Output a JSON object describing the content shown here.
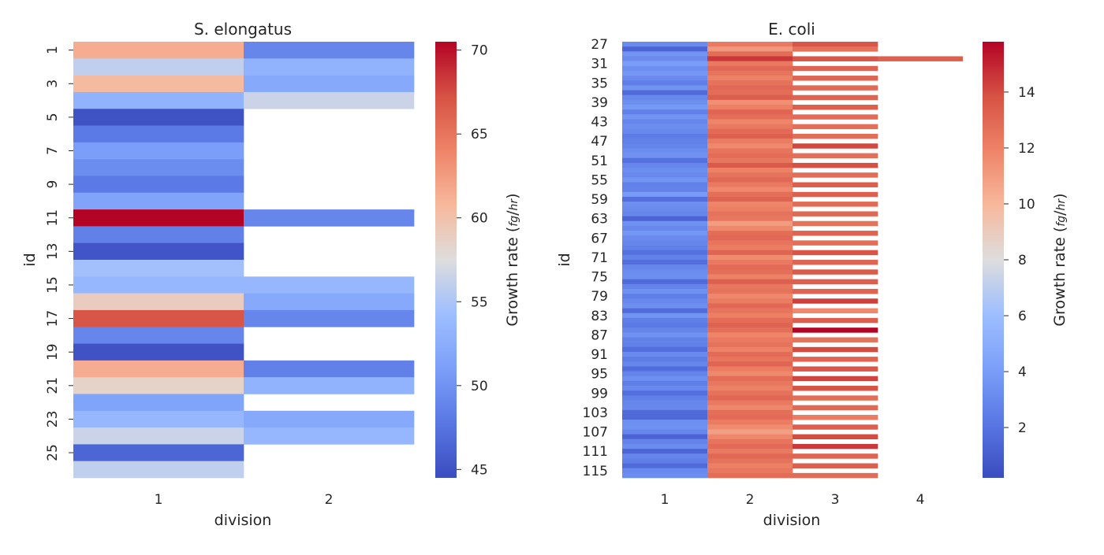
{
  "chart_data": [
    {
      "type": "heatmap",
      "title": "S. elongatus",
      "xlabel": "division",
      "ylabel": "id",
      "x_categories": [
        "1",
        "2"
      ],
      "y_ids": [
        1,
        2,
        3,
        4,
        5,
        6,
        7,
        8,
        9,
        10,
        11,
        12,
        13,
        14,
        15,
        16,
        17,
        18,
        19,
        20,
        21,
        22,
        23,
        24,
        25,
        26
      ],
      "y_tick_labels": [
        "1",
        "3",
        "5",
        "7",
        "9",
        "11",
        "13",
        "15",
        "17",
        "19",
        "21",
        "23",
        "25"
      ],
      "values": [
        [
          61.5,
          49.0
        ],
        [
          56.0,
          53.0
        ],
        [
          60.5,
          52.0
        ],
        [
          53.0,
          56.5
        ],
        [
          45.0,
          null
        ],
        [
          48.0,
          null
        ],
        [
          51.0,
          null
        ],
        [
          49.5,
          null
        ],
        [
          48.0,
          null
        ],
        [
          51.5,
          null
        ],
        [
          70.5,
          49.0
        ],
        [
          48.5,
          null
        ],
        [
          45.2,
          null
        ],
        [
          54.5,
          null
        ],
        [
          53.5,
          53.5
        ],
        [
          59.0,
          52.0
        ],
        [
          67.0,
          49.0
        ],
        [
          49.0,
          null
        ],
        [
          45.0,
          null
        ],
        [
          61.5,
          48.5
        ],
        [
          58.5,
          53.0
        ],
        [
          51.5,
          null
        ],
        [
          53.5,
          52.0
        ],
        [
          56.5,
          53.5
        ],
        [
          46.5,
          null
        ],
        [
          56.0,
          null
        ]
      ],
      "colorbar": {
        "label": "Growth rate (fg/hr)",
        "vmin": 44.5,
        "vmax": 70.5,
        "ticks": [
          45,
          50,
          55,
          60,
          65,
          70
        ],
        "cmap": "coolwarm"
      }
    },
    {
      "type": "heatmap",
      "title": "E. coli",
      "xlabel": "division",
      "ylabel": "id",
      "x_categories": [
        "1",
        "2",
        "3",
        "4"
      ],
      "y_start": 27,
      "y_end": 116,
      "y_tick_labels": [
        "27",
        "31",
        "35",
        "39",
        "43",
        "47",
        "51",
        "55",
        "59",
        "63",
        "67",
        "71",
        "75",
        "79",
        "83",
        "87",
        "91",
        "95",
        "99",
        "103",
        "107",
        "111",
        "115"
      ],
      "values_div1": [
        3.1,
        1.3,
        3.5,
        3.1,
        4.0,
        3.3,
        3.7,
        3.1,
        2.5,
        3.5,
        1.6,
        3.0,
        3.3,
        3.8,
        2.6,
        3.6,
        2.9,
        3.2,
        3.0,
        2.4,
        2.6,
        2.8,
        3.2,
        3.4,
        1.9,
        2.9,
        3.2,
        3.0,
        3.6,
        2.6,
        2.7,
        3.9,
        1.8,
        3.3,
        3.1,
        2.9,
        1.3,
        3.4,
        3.0,
        3.7,
        3.1,
        2.9,
        2.6,
        1.9,
        2.7,
        1.8,
        2.9,
        3.2,
        3.3,
        1.6,
        2.8,
        3.4,
        2.5,
        3.0,
        3.3,
        1.7,
        3.6,
        2.5,
        2.3,
        2.9,
        3.4,
        2.7,
        2.6,
        1.8,
        3.1,
        2.4,
        2.9,
        1.7,
        2.8,
        3.3,
        2.5,
        3.0,
        1.8,
        2.6,
        2.9,
        3.0,
        1.6,
        1.5,
        3.3,
        3.4,
        2.9,
        1.3,
        2.8,
        3.2,
        1.4,
        2.9,
        2.5,
        1.6,
        3.0,
        3.2
      ],
      "values_div2": [
        12.3,
        11.2,
        12.8,
        14.5,
        12.3,
        13.0,
        12.5,
        12.0,
        12.6,
        13.0,
        12.8,
        13.4,
        11.5,
        12.1,
        13.1,
        12.7,
        11.9,
        12.3,
        12.9,
        13.3,
        12.2,
        11.7,
        12.5,
        12.8,
        12.4,
        13.5,
        12.0,
        12.6,
        13.0,
        12.3,
        11.8,
        12.7,
        13.2,
        11.9,
        12.1,
        12.6,
        12.4,
        11.0,
        11.7,
        12.8,
        13.0,
        12.5,
        12.2,
        13.1,
        11.6,
        12.3,
        12.9,
        12.7,
        12.0,
        13.3,
        12.4,
        12.6,
        11.8,
        12.2,
        13.0,
        12.5,
        12.1,
        12.8,
        13.2,
        12.7,
        11.9,
        12.3,
        12.6,
        12.0,
        12.9,
        12.5,
        13.1,
        12.2,
        11.7,
        12.8,
        12.4,
        12.0,
        12.6,
        13.0,
        12.3,
        11.8,
        12.7,
        12.9,
        12.2,
        11.6,
        10.9,
        11.8,
        12.5,
        12.9,
        12.3,
        13.0,
        12.6,
        12.1,
        12.4,
        12.8
      ],
      "values_div3": [
        13.7,
        12.6,
        null,
        13.7,
        null,
        13.2,
        null,
        13.2,
        null,
        13.0,
        null,
        13.2,
        null,
        13.4,
        null,
        12.9,
        null,
        12.7,
        null,
        12.8,
        null,
        14.1,
        null,
        12.7,
        null,
        13.9,
        null,
        12.8,
        null,
        13.4,
        null,
        13.3,
        null,
        12.9,
        null,
        13.0,
        null,
        12.6,
        null,
        13.2,
        null,
        12.8,
        null,
        13.7,
        null,
        13.1,
        null,
        13.5,
        null,
        13.3,
        null,
        13.2,
        null,
        14.3,
        null,
        11.7,
        null,
        13.4,
        null,
        15.8,
        null,
        12.6,
        null,
        14.0,
        null,
        13.1,
        null,
        13.6,
        null,
        14.2,
        null,
        13.8,
        null,
        12.8,
        null,
        13.0,
        null,
        12.2,
        null,
        13.3,
        null,
        14.0,
        null,
        14.5,
        null,
        13.2,
        null,
        13.4,
        null,
        12.9
      ],
      "div4_values": {
        "30": 13.3
      },
      "colorbar": {
        "label": "Growth rate (fg/hr)",
        "vmin": 0.2,
        "vmax": 15.8,
        "ticks": [
          2,
          4,
          6,
          8,
          10,
          12,
          14
        ],
        "cmap": "coolwarm"
      }
    }
  ]
}
